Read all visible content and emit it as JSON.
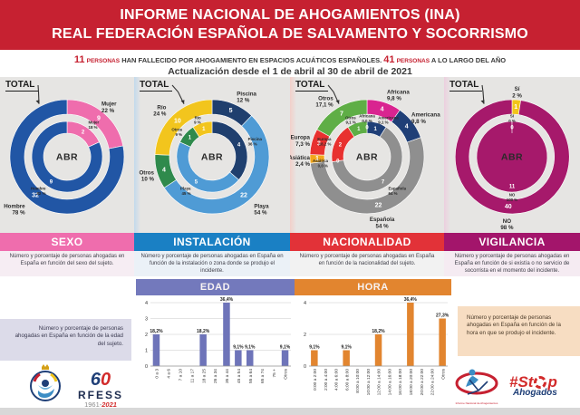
{
  "header": {
    "line1": "INFORME NACIONAL DE AHOGAMIENTOS (INA)",
    "line2": "REAL FEDERACIÓN ESPAÑOLA DE SALVAMENTO Y SOCORRISMO"
  },
  "subtitle": {
    "count1": "11",
    "label1": "PERSONAS",
    "text1": "HAN FALLECIDO POR AHOGAMIENTO EN ESPACIOS ACUÁTICOS ESPAÑOLES.",
    "count2": "41",
    "label2": "PERSONAS",
    "text2": "A LO LARGO DEL AÑO",
    "update": "Actualización desde el 1 de abril al 30 de abril de 2021"
  },
  "chart_data": [
    {
      "type": "pie",
      "subtype": "nested-donut",
      "title": "SEXO",
      "total_label": "TOTAL",
      "center_label": "ABR",
      "banner_color": "#EF6DAD",
      "description": "Número y porcentaje de personas ahogadas en España en función del sexo del sujeto.",
      "outer_total": 41,
      "inner_total": 11,
      "outer": [
        {
          "label": "Mujer",
          "pct": "22 %",
          "value": 9,
          "color": "#EF6DAD"
        },
        {
          "label": "Hombre",
          "pct": "78 %",
          "value": 32,
          "color": "#2156A5"
        }
      ],
      "inner": [
        {
          "label": "Mujer",
          "pct": "18 %",
          "value": 2,
          "color": "#EF6DAD"
        },
        {
          "label": "Hombre",
          "pct": "82 %",
          "value": 9,
          "color": "#2156A5"
        }
      ]
    },
    {
      "type": "pie",
      "subtype": "nested-donut",
      "title": "INSTALACIÓN",
      "total_label": "TOTAL",
      "center_label": "ABR",
      "banner_color": "#1A80C4",
      "description": "Número y porcentaje de personas ahogadas en España en función de la instalación o zona donde se produjo el incidente.",
      "outer_total": 41,
      "inner_total": 11,
      "outer": [
        {
          "label": "Piscina",
          "pct": "12 %",
          "value": 5,
          "color": "#1F3F6E"
        },
        {
          "label": "Playa",
          "pct": "54 %",
          "value": 22,
          "color": "#4F9BD5"
        },
        {
          "label": "Otros",
          "pct": "10 %",
          "value": 4,
          "color": "#2F8A4C"
        },
        {
          "label": "Río",
          "pct": "24 %",
          "value": 10,
          "color": "#F2C51D"
        }
      ],
      "inner": [
        {
          "label": "Piscina",
          "pct": "36 %",
          "value": 4,
          "color": "#1F3F6E"
        },
        {
          "label": "Playa",
          "pct": "45 %",
          "value": 5,
          "color": "#4F9BD5"
        },
        {
          "label": "Otros",
          "pct": "9 %",
          "value": 1,
          "color": "#2F8A4C"
        },
        {
          "label": "Río",
          "pct": "9 %",
          "value": 1,
          "color": "#F2C51D"
        }
      ]
    },
    {
      "type": "pie",
      "subtype": "nested-donut",
      "title": "NACIONALIDAD",
      "total_label": "TOTAL",
      "center_label": "ABR",
      "banner_color": "#E23238",
      "description": "Número y porcentaje de personas ahogadas en España en función de la nacionalidad del sujeto.",
      "outer_total": 41,
      "inner_total": 11,
      "outer": [
        {
          "label": "Africana",
          "pct": "9,8 %",
          "value": 4,
          "color": "#D92490"
        },
        {
          "label": "Americana",
          "pct": "9,8 %",
          "value": 4,
          "color": "#1F3F77"
        },
        {
          "label": "Española",
          "pct": "54 %",
          "value": 22,
          "color": "#8F8F8F"
        },
        {
          "label": "Asiática",
          "pct": "2,4 %",
          "value": 1,
          "color": "#F2A71B"
        },
        {
          "label": "Europa",
          "pct": "7,3 %",
          "value": 3,
          "color": "#E8312F"
        },
        {
          "label": "Otros",
          "pct": "17,1 %",
          "value": 7,
          "color": "#5FAE46"
        }
      ],
      "inner": [
        {
          "label": "Africana",
          "pct": "0,0 %",
          "value": 0,
          "color": "#D92490"
        },
        {
          "label": "Americana",
          "pct": "9,1 %",
          "value": 1,
          "color": "#1F3F77"
        },
        {
          "label": "Española",
          "pct": "64 %",
          "value": 7,
          "color": "#8F8F8F"
        },
        {
          "label": "Asiática",
          "pct": "0,0 %",
          "value": 0,
          "color": "#F2A71B"
        },
        {
          "label": "Europa",
          "pct": "18,2 %",
          "value": 2,
          "color": "#E8312F"
        },
        {
          "label": "Otros",
          "pct": "9,1 %",
          "value": 1,
          "color": "#5FAE46"
        }
      ]
    },
    {
      "type": "pie",
      "subtype": "nested-donut",
      "title": "VIGILANCIA",
      "total_label": "TOTAL",
      "center_label": "ABR",
      "banner_color": "#A3156B",
      "description": "Número y porcentaje de personas ahogadas en España en función de si existía o no servicio de socorrista en el momento del incidente.",
      "outer_total": 41,
      "inner_total": 11,
      "outer": [
        {
          "label": "Sí",
          "pct": "2 %",
          "value": 1,
          "color": "#F2C518"
        },
        {
          "label": "NO",
          "pct": "98 %",
          "value": 40,
          "color": "#A6196B"
        }
      ],
      "inner": [
        {
          "label": "Sí",
          "pct": "0 %",
          "value": 0,
          "color": "#F2C518"
        },
        {
          "label": "NO",
          "pct": "100 %",
          "value": 11,
          "color": "#A6196B"
        }
      ]
    },
    {
      "type": "bar",
      "title": "EDAD",
      "banner_color": "#7379BC",
      "bar_color": "#6E74B9",
      "categories": [
        "0 a 3",
        "4 a 6",
        "7 a 10",
        "11 a 17",
        "18 a 25",
        "26 a 34",
        "35 a 44",
        "45 a 54",
        "55 a 64",
        "65 a 74",
        "75 +",
        "Otros"
      ],
      "values": [
        2,
        0,
        0,
        0,
        2,
        0,
        4,
        1,
        1,
        0,
        0,
        1
      ],
      "pct_labels": [
        "18,2%",
        "",
        "",
        "",
        "18,2%",
        "",
        "36,4%",
        "9,1%",
        "9,1%",
        "",
        "",
        "9,1%"
      ],
      "ylim": [
        0,
        4
      ],
      "yticks": [
        0,
        1,
        2,
        3,
        4
      ],
      "note": "Número y porcentaje de personas ahogadas en España en función de la edad del sujeto."
    },
    {
      "type": "bar",
      "title": "HORA",
      "banner_color": "#E2852F",
      "bar_color": "#E2852F",
      "categories": [
        "0:00 a 2:00",
        "2:00 a 4:00",
        "4:00 a 6:00",
        "6:00 a 8:00",
        "8:00 a 10:00",
        "10:00 a 12:00",
        "12:00 a 14:00",
        "14:00 a 16:00",
        "16:00 a 18:00",
        "18:00 a 20:00",
        "20:00 a 22:00",
        "22:00 a 24:00",
        "Otros"
      ],
      "values": [
        1,
        0,
        0,
        1,
        0,
        0,
        2,
        0,
        0,
        4,
        0,
        0,
        3
      ],
      "pct_labels": [
        "9,1%",
        "",
        "",
        "9,1%",
        "",
        "",
        "18,2%",
        "",
        "",
        "36,4%",
        "",
        "",
        "27,3%"
      ],
      "ylim": [
        0,
        4
      ],
      "yticks": [
        0,
        2,
        4
      ],
      "note": "Número y porcentaje de personas ahogadas en España en función de la hora en que se produjo el incidente."
    }
  ],
  "logos": {
    "rfess_crest_caption": "Real Federación Española de Salvamento y Socorrismo",
    "anniversary": {
      "number_six": "6",
      "number_zero": "0",
      "name": "RFESS",
      "year_start": "1961",
      "dash": "-",
      "year_end": "2021"
    },
    "ina_caption": "Informe Nacional de Ahogamientos",
    "stop": {
      "start": "#St",
      "end": "p",
      "sub": "Ahogados"
    }
  }
}
